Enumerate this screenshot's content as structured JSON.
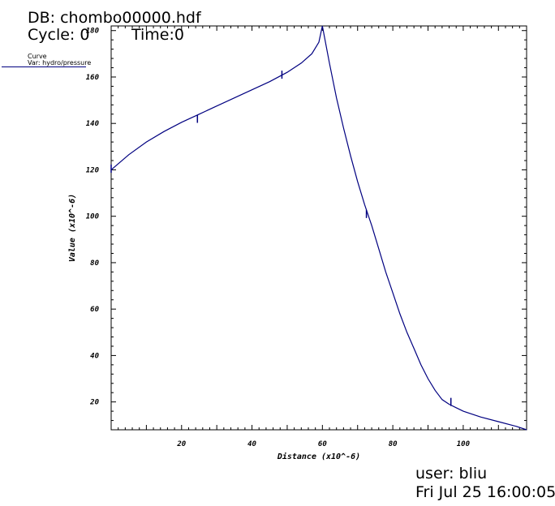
{
  "header": {
    "db": "DB: chombo00000.hdf",
    "cycle": "Cycle: 0",
    "time": "Time:0"
  },
  "legend": {
    "title": "Curve",
    "var": "Var: hydro/pressure"
  },
  "footer": {
    "user": "user: bliu",
    "date": "Fri Jul 25 16:00:05"
  },
  "chart_data": {
    "type": "line",
    "title": "",
    "xlabel": "Distance (x10^-6)",
    "ylabel": "Value (x10^-6)",
    "xlim": [
      0,
      118
    ],
    "ylim": [
      8,
      182
    ],
    "x_ticks": [
      20,
      40,
      60,
      80,
      100
    ],
    "y_ticks": [
      20,
      40,
      60,
      80,
      100,
      120,
      140,
      160,
      180
    ],
    "grid": false,
    "legend_position": "top-left",
    "color": "#000080",
    "series": [
      {
        "name": "Curve",
        "x": [
          0,
          5,
          10,
          15,
          20,
          25,
          30,
          35,
          40,
          45,
          50,
          54,
          57,
          59,
          60,
          62,
          64,
          66,
          68,
          70,
          72,
          74,
          76,
          78,
          80,
          82,
          84,
          86,
          88,
          90,
          92,
          94,
          96,
          98,
          100,
          105,
          110,
          115,
          118
        ],
        "y": [
          120,
          126.5,
          132,
          136.5,
          140.5,
          144,
          147.5,
          151,
          154.5,
          158,
          162,
          166,
          170,
          175,
          182,
          166,
          151,
          138,
          126,
          115,
          105,
          96,
          86,
          76,
          67,
          58,
          50,
          43,
          36,
          30,
          25,
          21,
          19,
          17.5,
          16,
          13.5,
          11.5,
          9.5,
          8
        ]
      }
    ],
    "markers": {
      "x": [
        0,
        24.5,
        48.5,
        72.5,
        96.5
      ],
      "y": [
        120.5,
        142,
        161,
        101,
        20
      ]
    }
  }
}
